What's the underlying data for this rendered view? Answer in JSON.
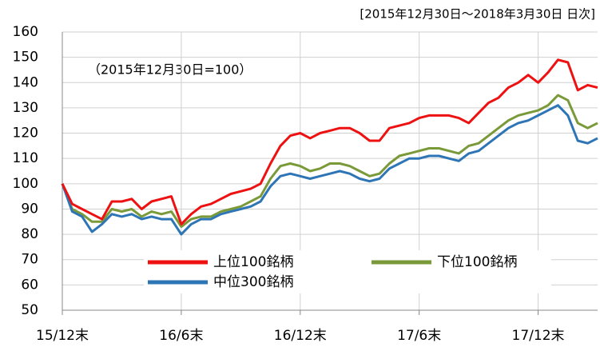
{
  "chart_data": {
    "type": "line",
    "subtitle": "[2015年12月30日～2018年3月30日 日次]",
    "annotation": "（2015年12月30日=100）",
    "x": [
      0,
      0.5,
      1,
      1.5,
      2,
      2.5,
      3,
      3.5,
      4,
      4.5,
      5,
      5.5,
      6,
      6.5,
      7,
      7.5,
      8,
      8.5,
      9,
      9.5,
      10,
      10.5,
      11,
      11.5,
      12,
      12.5,
      13,
      13.5,
      14,
      14.5,
      15,
      15.5,
      16,
      16.5,
      17,
      17.5,
      18,
      18.5,
      19,
      19.5,
      20,
      20.5,
      21,
      21.5,
      22,
      22.5,
      23,
      23.5,
      24,
      24.5,
      25,
      25.5,
      26,
      26.5,
      27
    ],
    "series": [
      {
        "name": "上位100銘柄",
        "color": "#ee1111",
        "values": [
          100,
          92,
          90,
          88,
          86,
          93,
          93,
          94,
          90,
          93,
          94,
          95,
          84,
          88,
          91,
          92,
          94,
          96,
          97,
          98,
          100,
          108,
          115,
          119,
          120,
          118,
          120,
          121,
          122,
          122,
          120,
          117,
          117,
          122,
          123,
          124,
          126,
          127,
          127,
          127,
          126,
          124,
          128,
          132,
          134,
          138,
          140,
          143,
          140,
          144,
          149,
          148,
          137,
          139,
          138
        ]
      },
      {
        "name": "中位300銘柄",
        "color": "#2e75b6",
        "values": [
          100,
          89,
          87,
          81,
          84,
          88,
          87,
          88,
          86,
          87,
          86,
          86,
          80,
          84,
          86,
          86,
          88,
          89,
          90,
          91,
          93,
          99,
          103,
          104,
          103,
          102,
          103,
          104,
          105,
          104,
          102,
          101,
          102,
          106,
          108,
          110,
          110,
          111,
          111,
          110,
          109,
          112,
          113,
          116,
          119,
          122,
          124,
          125,
          127,
          129,
          131,
          127,
          117,
          116,
          118
        ]
      },
      {
        "name": "下位100銘柄",
        "color": "#7a9a3a",
        "values": [
          100,
          90,
          88,
          85,
          85,
          90,
          89,
          90,
          87,
          89,
          88,
          89,
          83,
          86,
          87,
          87,
          89,
          90,
          91,
          93,
          95,
          102,
          107,
          108,
          107,
          105,
          106,
          108,
          108,
          107,
          105,
          103,
          104,
          108,
          111,
          112,
          113,
          114,
          114,
          113,
          112,
          115,
          116,
          119,
          122,
          125,
          127,
          128,
          129,
          131,
          135,
          133,
          124,
          122,
          124
        ]
      }
    ],
    "xlim": [
      0,
      27
    ],
    "xticks": [
      {
        "value": 0,
        "label": "15/12末"
      },
      {
        "value": 6,
        "label": "16/6末"
      },
      {
        "value": 12,
        "label": "16/12末"
      },
      {
        "value": 18,
        "label": "17/6末"
      },
      {
        "value": 24,
        "label": "17/12末"
      }
    ],
    "ylim": [
      50,
      160
    ],
    "yticks": [
      50,
      60,
      70,
      80,
      90,
      100,
      110,
      120,
      130,
      140,
      150,
      160
    ],
    "grid": true
  }
}
